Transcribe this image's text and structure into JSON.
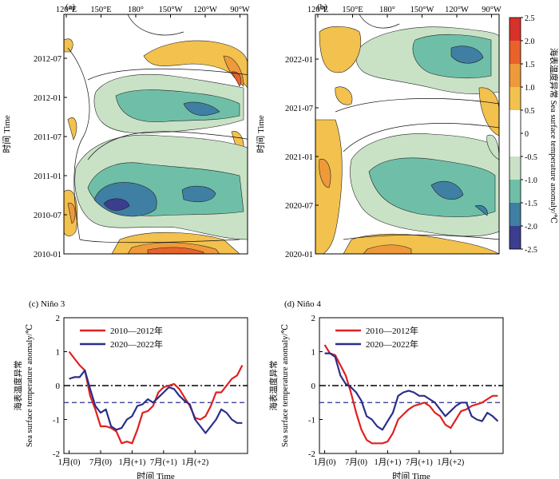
{
  "colors": {
    "neg_light": "#c9e2c6",
    "neg_mid": "#6fbfa8",
    "neg_dark": "#3f7fa3",
    "neg_deep": "#3b3e8f",
    "pos_light": "#f2c14e",
    "pos_mid": "#ee9a3a",
    "pos_dark": "#e8622a",
    "pos_deep": "#d7322a",
    "red_line": "#e02020",
    "blue_line": "#2a2f8a"
  },
  "hovmoller": {
    "lon_ticks": [
      "120°E",
      "150°E",
      "180°",
      "150°W",
      "120°W",
      "90°W"
    ],
    "ylabel": "时间 Time",
    "panel_a": {
      "label": "(a)",
      "time_ticks": [
        "2012-07",
        "2012-01",
        "2011-07",
        "2011-01",
        "2010-07",
        "2010-01"
      ]
    },
    "panel_b": {
      "label": "(b)",
      "time_ticks": [
        "2022-01",
        "2021-07",
        "2021-01",
        "2020-07",
        "2020-01"
      ]
    },
    "colorbar": {
      "ticks": [
        "2.5",
        "2.0",
        "1.5",
        "1.0",
        "0.5",
        "0",
        "-0.5",
        "-1.0",
        "-1.5",
        "-2.0",
        "-2.5"
      ],
      "label": "海表温度异常 Sea surface temperature anomaly/℃"
    }
  },
  "chart_data": [
    {
      "type": "line",
      "panel": "(c) Niño 3",
      "title": "(c) Niño 3",
      "xlabel": "时间 Time",
      "ylabel_cn": "海表温度异常",
      "ylabel_en": "Sea surface temperature anomaly/℃",
      "x_tick_labels": [
        "1月(0)",
        "7月(0)",
        "1月(+1)",
        "7月(+1)",
        "1月(+2)"
      ],
      "x_tick_months": [
        1,
        7,
        13,
        19,
        25
      ],
      "ylim": [
        -2,
        2
      ],
      "yticks": [
        -2,
        -1,
        0,
        1,
        2
      ],
      "reference_lines": [
        0,
        -0.5
      ],
      "series": [
        {
          "name": "2010—2012年",
          "color": "#e02020",
          "x": [
            1,
            2,
            3,
            4,
            5,
            6,
            7,
            8,
            9,
            10,
            11,
            12,
            13,
            14,
            15,
            16,
            17,
            18,
            19,
            20,
            21,
            22,
            23,
            24,
            25,
            26,
            27,
            28,
            29,
            30,
            31,
            32,
            33,
            34
          ],
          "y": [
            1.0,
            0.8,
            0.6,
            0.45,
            -0.3,
            -0.7,
            -1.2,
            -1.2,
            -1.25,
            -1.35,
            -1.7,
            -1.65,
            -1.7,
            -1.3,
            -0.8,
            -0.75,
            -0.6,
            -0.2,
            -0.05,
            0.0,
            0.05,
            -0.1,
            -0.35,
            -0.6,
            -0.95,
            -1.0,
            -0.9,
            -0.6,
            -0.2,
            -0.2,
            0.0,
            0.2,
            0.3,
            0.6
          ]
        },
        {
          "name": "2020—2022年",
          "color": "#2a2f8a",
          "x": [
            1,
            2,
            3,
            4,
            5,
            6,
            7,
            8,
            9,
            10,
            11,
            12,
            13,
            14,
            15,
            16,
            17,
            18,
            19,
            20,
            21,
            22,
            23,
            24,
            25,
            26,
            27,
            28,
            29,
            30,
            31,
            32,
            33,
            34
          ],
          "y": [
            0.2,
            0.25,
            0.25,
            0.45,
            -0.1,
            -0.6,
            -0.8,
            -0.7,
            -1.2,
            -1.3,
            -1.25,
            -1.0,
            -0.9,
            -0.6,
            -0.55,
            -0.4,
            -0.5,
            -0.35,
            -0.2,
            -0.05,
            -0.1,
            -0.3,
            -0.45,
            -0.55,
            -1.0,
            -1.2,
            -1.4,
            -1.2,
            -1.0,
            -0.7,
            -0.8,
            -1.0,
            -1.1,
            -1.1
          ]
        }
      ]
    },
    {
      "type": "line",
      "panel": "(d) Niño 4",
      "title": "(d) Niño 4",
      "xlabel": "时间 Time",
      "ylabel_cn": "海表温度异常",
      "ylabel_en": "Sea surface temperature anomaly/℃",
      "x_tick_labels": [
        "1月(0)",
        "7月(0)",
        "1月(+1)",
        "7月(+1)",
        "1月(+2)"
      ],
      "x_tick_months": [
        1,
        7,
        13,
        19,
        25
      ],
      "ylim": [
        -2,
        2
      ],
      "yticks": [
        -2,
        -1,
        0,
        1,
        2
      ],
      "reference_lines": [
        0,
        -0.5
      ],
      "series": [
        {
          "name": "2010—2012年",
          "color": "#e02020",
          "x": [
            1,
            2,
            3,
            4,
            5,
            6,
            7,
            8,
            9,
            10,
            11,
            12,
            13,
            14,
            15,
            16,
            17,
            18,
            19,
            20,
            21,
            22,
            23,
            24,
            25,
            26,
            27,
            28,
            29,
            30,
            31,
            32,
            33,
            34
          ],
          "y": [
            1.2,
            0.95,
            0.9,
            0.6,
            0.3,
            -0.2,
            -0.8,
            -1.3,
            -1.6,
            -1.7,
            -1.7,
            -1.7,
            -1.65,
            -1.4,
            -1.0,
            -0.85,
            -0.7,
            -0.6,
            -0.55,
            -0.5,
            -0.6,
            -0.8,
            -0.9,
            -1.15,
            -1.25,
            -1.0,
            -0.75,
            -0.7,
            -0.6,
            -0.55,
            -0.5,
            -0.4,
            -0.3,
            -0.3
          ]
        },
        {
          "name": "2020—2022年",
          "color": "#2a2f8a",
          "x": [
            1,
            2,
            3,
            4,
            5,
            6,
            7,
            8,
            9,
            10,
            11,
            12,
            13,
            14,
            15,
            16,
            17,
            18,
            19,
            20,
            21,
            22,
            23,
            24,
            25,
            26,
            27,
            28,
            29,
            30,
            31,
            32,
            33,
            34
          ],
          "y": [
            0.95,
            0.95,
            0.85,
            0.3,
            0.05,
            -0.05,
            -0.2,
            -0.45,
            -0.9,
            -1.0,
            -1.2,
            -1.3,
            -1.05,
            -0.8,
            -0.3,
            -0.2,
            -0.15,
            -0.2,
            -0.3,
            -0.3,
            -0.4,
            -0.5,
            -0.7,
            -0.9,
            -0.75,
            -0.6,
            -0.5,
            -0.5,
            -0.9,
            -1.0,
            -1.05,
            -0.8,
            -0.9,
            -1.05
          ]
        }
      ]
    }
  ]
}
